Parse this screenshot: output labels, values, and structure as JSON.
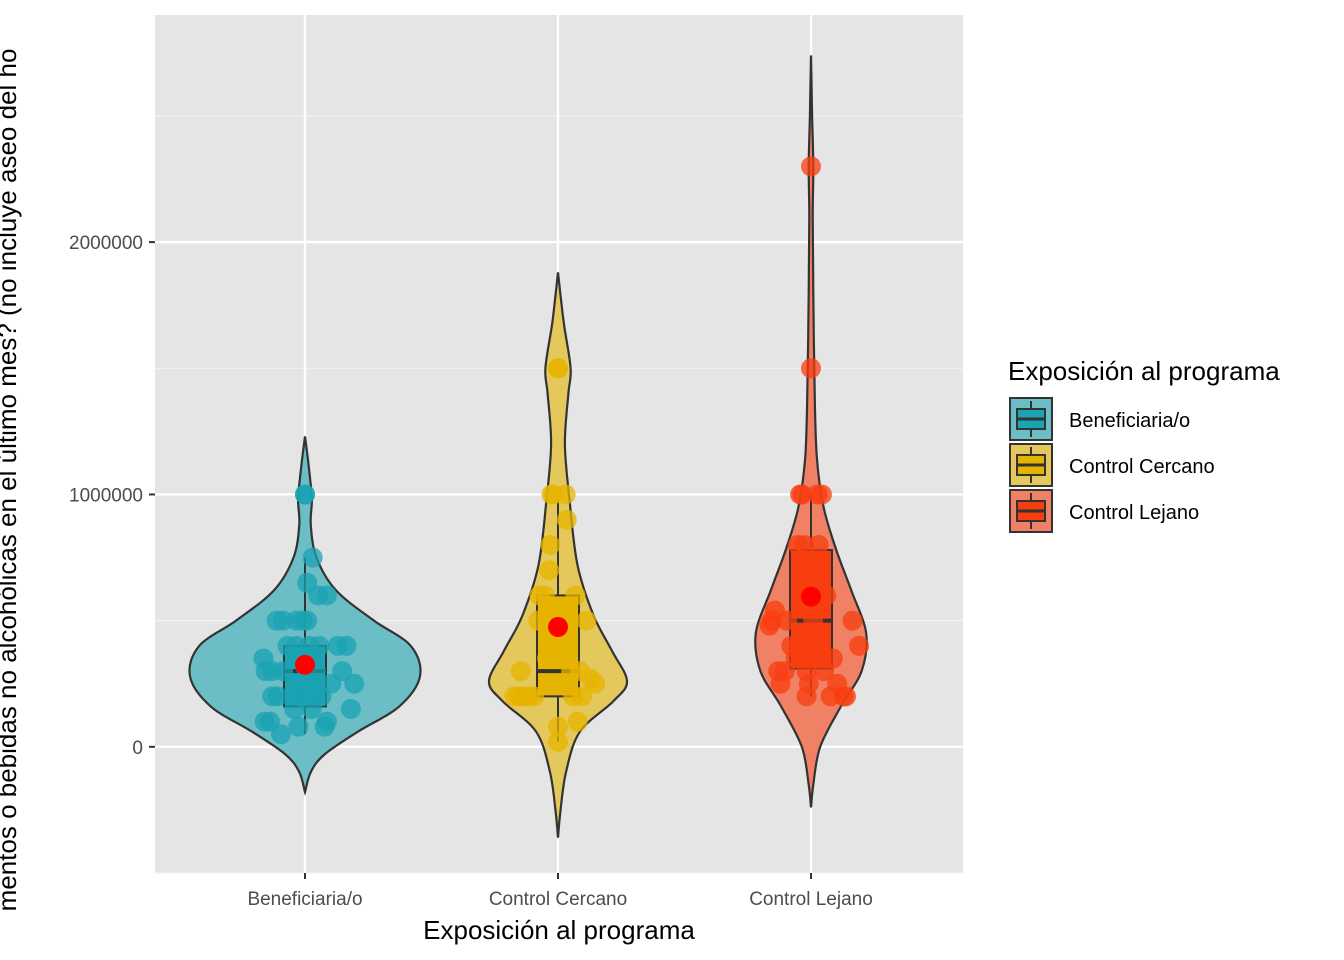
{
  "chart_data": {
    "type": "violin",
    "xlabel": "Exposición al programa",
    "ylabel": "mentos o bebidas no alcohólicas en el último mes? (no incluye aseo del ho",
    "ylim": [
      -500000,
      2900000
    ],
    "y_ticks": [
      0,
      1000000,
      2000000
    ],
    "y_tick_labels": [
      "0",
      "1000000",
      "2000000"
    ],
    "categories": [
      "Beneficiaria/o",
      "Control Cercano",
      "Control Lejano"
    ],
    "legend": {
      "title": "Exposición al programa",
      "position": "right",
      "entries": [
        "Beneficiaria/o",
        "Control Cercano",
        "Control Lejano"
      ]
    },
    "grid": true,
    "series": [
      {
        "name": "Beneficiaria/o",
        "color": "#1AA3B2",
        "box": {
          "q1": 160000,
          "median": 300000,
          "q3": 400000,
          "whisker_low": 50000,
          "whisker_high": 750000
        },
        "mean": 325000,
        "violin": [
          [
            -180000,
            0.0
          ],
          [
            -100000,
            0.05
          ],
          [
            -30000,
            0.17
          ],
          [
            60000,
            0.46
          ],
          [
            160000,
            0.82
          ],
          [
            280000,
            1.0
          ],
          [
            400000,
            0.92
          ],
          [
            500000,
            0.6
          ],
          [
            620000,
            0.27
          ],
          [
            750000,
            0.1
          ],
          [
            880000,
            0.05
          ],
          [
            980000,
            0.06
          ],
          [
            1080000,
            0.04
          ],
          [
            1160000,
            0.02
          ],
          [
            1230000,
            0.0
          ]
        ],
        "points": [
          [
            -0.38,
            350000
          ],
          [
            -0.36,
            300000
          ],
          [
            -0.37,
            100000
          ],
          [
            -0.3,
            200000
          ],
          [
            -0.3,
            300000
          ],
          [
            -0.26,
            500000
          ],
          [
            -0.2,
            500000
          ],
          [
            -0.2,
            300000
          ],
          [
            -0.22,
            50000
          ],
          [
            -0.16,
            400000
          ],
          [
            -0.1,
            150000
          ],
          [
            -0.08,
            400000
          ],
          [
            -0.08,
            500000
          ],
          [
            -0.06,
            80000
          ],
          [
            -0.04,
            200000
          ],
          [
            -0.02,
            500000
          ],
          [
            0.0,
            320000
          ],
          [
            0.02,
            650000
          ],
          [
            0.02,
            500000
          ],
          [
            0.04,
            400000
          ],
          [
            0.05,
            350000
          ],
          [
            0.06,
            150000
          ],
          [
            0.07,
            750000
          ],
          [
            0.1,
            300000
          ],
          [
            0.12,
            600000
          ],
          [
            0.13,
            400000
          ],
          [
            0.15,
            200000
          ],
          [
            0.18,
            80000
          ],
          [
            0.2,
            100000
          ],
          [
            0.2,
            600000
          ],
          [
            0.24,
            250000
          ],
          [
            0.3,
            400000
          ],
          [
            0.34,
            300000
          ],
          [
            0.38,
            400000
          ],
          [
            0.42,
            150000
          ],
          [
            0.45,
            250000
          ],
          [
            -0.32,
            100000
          ],
          [
            -0.25,
            200000
          ],
          [
            0.0,
            1000000
          ],
          [
            0.0,
            1000000
          ]
        ]
      },
      {
        "name": "Control Cercano",
        "color": "#E5B400",
        "box": {
          "q1": 200000,
          "median": 300000,
          "q3": 600000,
          "whisker_low": 20000,
          "whisker_high": 1000000
        },
        "mean": 475000,
        "violin": [
          [
            -360000,
            0.0
          ],
          [
            -260000,
            0.02
          ],
          [
            -100000,
            0.07
          ],
          [
            60000,
            0.19
          ],
          [
            180000,
            0.48
          ],
          [
            260000,
            0.6
          ],
          [
            380000,
            0.47
          ],
          [
            520000,
            0.31
          ],
          [
            720000,
            0.17
          ],
          [
            980000,
            0.1
          ],
          [
            1200000,
            0.06
          ],
          [
            1400000,
            0.09
          ],
          [
            1500000,
            0.11
          ],
          [
            1680000,
            0.05
          ],
          [
            1880000,
            0.0
          ]
        ],
        "points": [
          [
            -0.4,
            200000
          ],
          [
            -0.36,
            200000
          ],
          [
            -0.34,
            300000
          ],
          [
            -0.32,
            200000
          ],
          [
            -0.3,
            200000
          ],
          [
            -0.26,
            200000
          ],
          [
            -0.22,
            200000
          ],
          [
            -0.18,
            500000
          ],
          [
            -0.17,
            600000
          ],
          [
            -0.12,
            600000
          ],
          [
            -0.1,
            350000
          ],
          [
            -0.08,
            700000
          ],
          [
            -0.07,
            800000
          ],
          [
            -0.06,
            1000000
          ],
          [
            -0.04,
            1000000
          ],
          [
            -0.02,
            450000
          ],
          [
            0.0,
            80000
          ],
          [
            0.0,
            20000
          ],
          [
            0.0,
            1500000
          ],
          [
            0.0,
            1500000
          ],
          [
            0.04,
            500000
          ],
          [
            0.05,
            250000
          ],
          [
            0.07,
            1000000
          ],
          [
            0.08,
            900000
          ],
          [
            0.12,
            300000
          ],
          [
            0.14,
            200000
          ],
          [
            0.16,
            600000
          ],
          [
            0.18,
            100000
          ],
          [
            0.2,
            300000
          ],
          [
            0.22,
            200000
          ],
          [
            0.26,
            500000
          ],
          [
            0.3,
            270000
          ],
          [
            0.34,
            250000
          ],
          [
            0.02,
            450000
          ]
        ]
      },
      {
        "name": "Control Lejano",
        "color": "#F83E0F",
        "box": {
          "q1": 310000,
          "median": 500000,
          "q3": 780000,
          "whisker_low": 200000,
          "whisker_high": 1000000
        },
        "mean": 595000,
        "violin": [
          [
            -240000,
            0.0
          ],
          [
            -150000,
            0.02
          ],
          [
            0,
            0.08
          ],
          [
            160000,
            0.26
          ],
          [
            300000,
            0.44
          ],
          [
            450000,
            0.48
          ],
          [
            620000,
            0.35
          ],
          [
            780000,
            0.22
          ],
          [
            950000,
            0.11
          ],
          [
            1150000,
            0.05
          ],
          [
            1450000,
            0.03
          ],
          [
            1800000,
            0.02
          ],
          [
            2100000,
            0.015
          ],
          [
            2300000,
            0.02
          ],
          [
            2500000,
            0.01
          ],
          [
            2740000,
            0.0
          ]
        ],
        "points": [
          [
            -0.38,
            480000
          ],
          [
            -0.36,
            500000
          ],
          [
            -0.33,
            540000
          ],
          [
            -0.3,
            300000
          ],
          [
            -0.28,
            250000
          ],
          [
            -0.24,
            300000
          ],
          [
            -0.22,
            500000
          ],
          [
            -0.18,
            400000
          ],
          [
            -0.14,
            350000
          ],
          [
            -0.12,
            400000
          ],
          [
            -0.12,
            800000
          ],
          [
            -0.1,
            1000000
          ],
          [
            -0.08,
            1000000
          ],
          [
            -0.06,
            800000
          ],
          [
            -0.04,
            300000
          ],
          [
            -0.04,
            200000
          ],
          [
            -0.02,
            250000
          ],
          [
            -0.02,
            650000
          ],
          [
            0.0,
            1500000
          ],
          [
            0.0,
            2300000
          ],
          [
            0.02,
            500000
          ],
          [
            0.04,
            450000
          ],
          [
            0.06,
            1000000
          ],
          [
            0.07,
            800000
          ],
          [
            0.09,
            400000
          ],
          [
            0.1,
            1000000
          ],
          [
            0.12,
            300000
          ],
          [
            0.14,
            600000
          ],
          [
            0.18,
            200000
          ],
          [
            0.2,
            350000
          ],
          [
            0.24,
            250000
          ],
          [
            0.3,
            200000
          ],
          [
            0.32,
            200000
          ],
          [
            0.38,
            500000
          ],
          [
            0.44,
            400000
          ],
          [
            0.06,
            700000
          ]
        ]
      }
    ]
  }
}
